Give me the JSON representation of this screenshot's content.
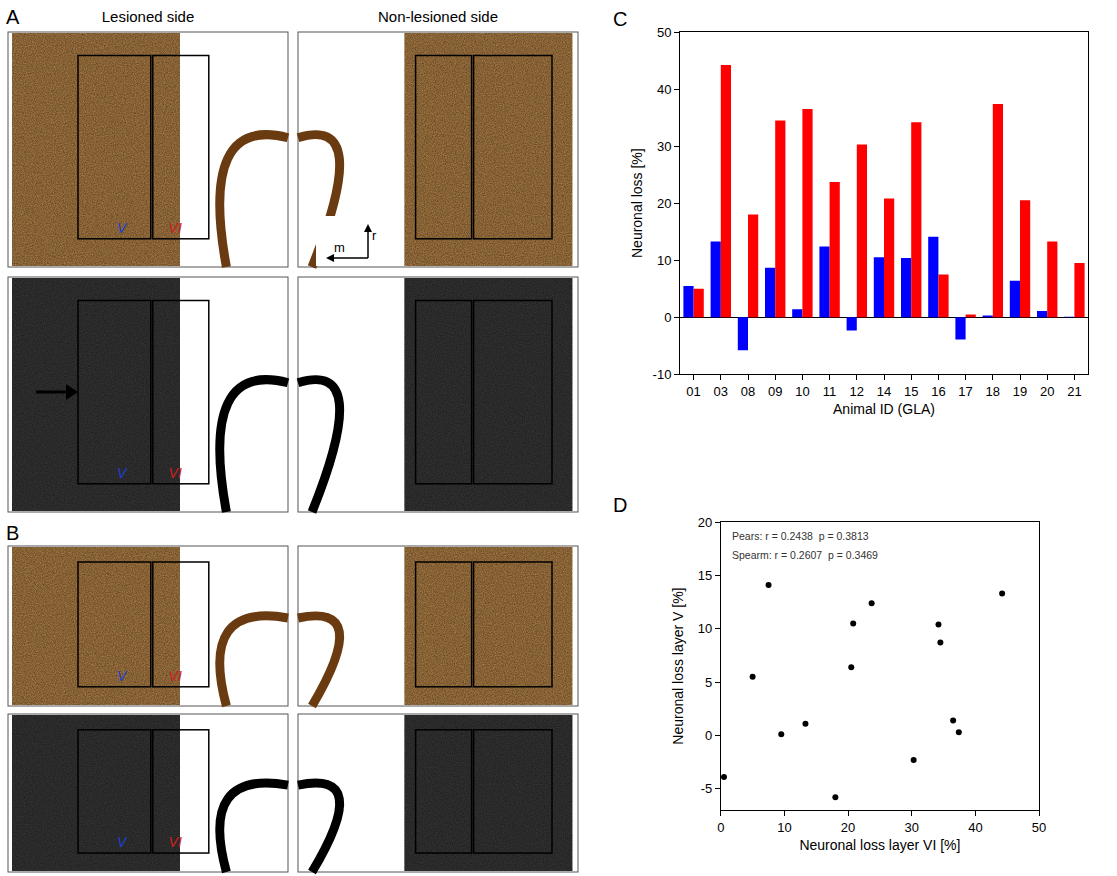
{
  "panels": {
    "A": {
      "label": "A",
      "column_titles": [
        "Lesioned side",
        "Non-lesioned side"
      ],
      "layer_labels": [
        "V",
        "VI"
      ],
      "layer_colors": [
        "#1f3fd0",
        "#d0201f"
      ],
      "compass": [
        "r",
        "m"
      ]
    },
    "B": {
      "label": "B",
      "layer_labels": [
        "V",
        "VI"
      ],
      "layer_colors": [
        "#1f3fd0",
        "#d0201f"
      ]
    }
  },
  "chart_data": [
    {
      "panel_label": "C",
      "type": "bar",
      "categories": [
        "01",
        "03",
        "08",
        "09",
        "10",
        "11",
        "12",
        "14",
        "15",
        "16",
        "17",
        "18",
        "19",
        "20",
        "21"
      ],
      "series": [
        {
          "color": "#0000ff",
          "values": [
            5.5,
            13.3,
            -5.8,
            8.7,
            1.4,
            12.4,
            -2.3,
            10.5,
            10.4,
            14.1,
            -3.9,
            0.3,
            6.4,
            1.1,
            0.1
          ]
        },
        {
          "color": "#ff0000",
          "values": [
            5.0,
            44.2,
            18.0,
            34.5,
            36.5,
            23.7,
            30.3,
            20.8,
            34.2,
            7.5,
            0.5,
            37.4,
            20.5,
            13.3,
            9.5
          ]
        }
      ],
      "xlabel": "Animal ID (GLA)",
      "ylabel": "Neuronal loss [%]",
      "ylim": [
        -10,
        50
      ],
      "yticks": [
        -10,
        0,
        10,
        20,
        30,
        40,
        50
      ]
    },
    {
      "panel_label": "D",
      "type": "scatter",
      "marker": "circle",
      "color": "#000000",
      "x": [
        0.5,
        5.0,
        7.5,
        9.5,
        13.3,
        18.0,
        20.5,
        20.8,
        23.7,
        30.3,
        34.2,
        34.5,
        36.5,
        37.4,
        44.2
      ],
      "y": [
        -3.9,
        5.5,
        14.1,
        0.1,
        1.1,
        -5.8,
        6.4,
        10.5,
        12.4,
        -2.3,
        10.4,
        8.7,
        1.4,
        0.3,
        13.3
      ],
      "xlabel": "Neuronal loss layer VI [%]",
      "ylabel": "Neuronal loss layer V [%]",
      "xlim": [
        0,
        50
      ],
      "xticks": [
        0,
        10,
        20,
        30,
        40,
        50
      ],
      "ylim": [
        -7,
        20
      ],
      "yticks": [
        -5,
        0,
        5,
        10,
        15,
        20
      ],
      "annotations": [
        "Pears: r = 0.2438  p = 0.3813",
        "Spearm: r = 0.2607  p = 0.3469"
      ]
    }
  ]
}
